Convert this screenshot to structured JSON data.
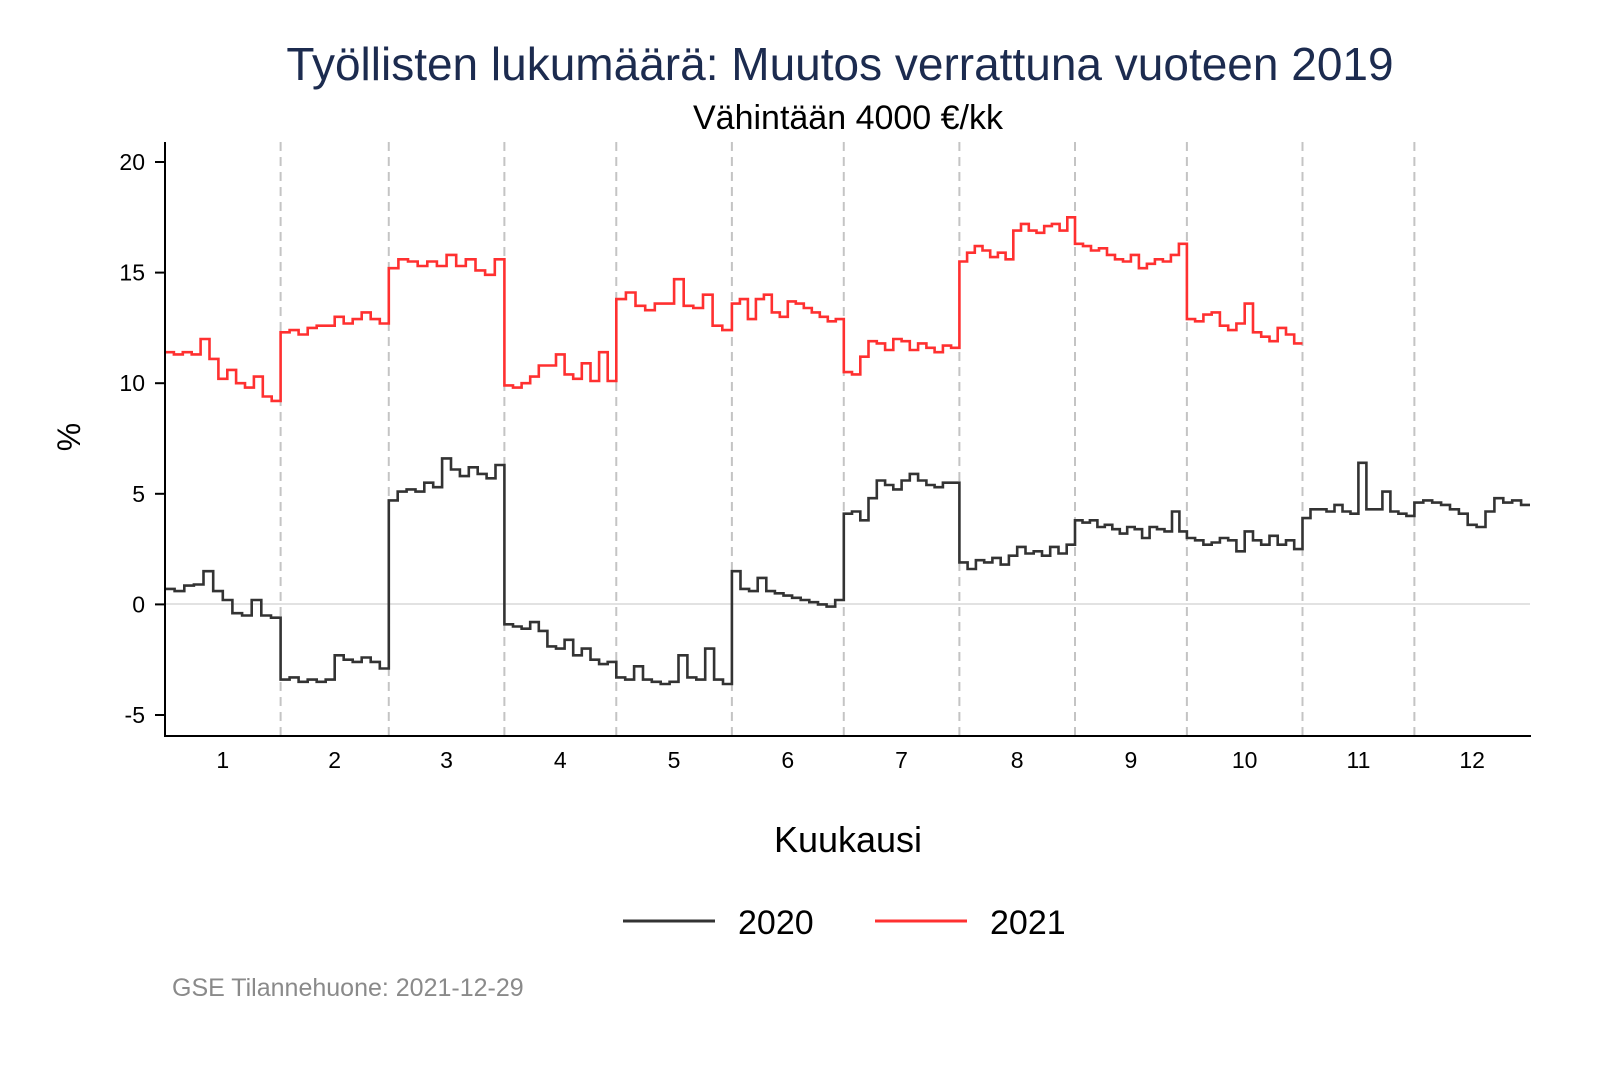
{
  "chart_data": {
    "type": "line",
    "title": "Työllisten lukumäärä: Muutos verrattuna vuoteen 2019",
    "subtitle": "Vähintään 4000 €/kk",
    "xlabel": "Kuukausi",
    "ylabel": "%",
    "ylim": [
      -5,
      20
    ],
    "y_ticks": [
      "-5",
      "0",
      "5",
      "10",
      "15",
      "20"
    ],
    "y_tick_values": [
      -5,
      0,
      5,
      10,
      15,
      20
    ],
    "x_ticks": [
      "1",
      "2",
      "3",
      "4",
      "5",
      "6",
      "7",
      "8",
      "9",
      "10",
      "11",
      "12"
    ],
    "grid": false,
    "reference_line_y": 0,
    "month_separators": true,
    "legend_position": "bottom",
    "note": "GSE Tilannehuone: 2021-12-29",
    "series": [
      {
        "name": "2020",
        "color": "#333333",
        "monthly_values": [
          [
            0.7,
            0.6,
            0.85,
            0.9,
            1.5,
            0.6,
            0.2,
            -0.4,
            -0.5,
            0.2,
            -0.5,
            -0.6
          ],
          [
            -3.4,
            -3.3,
            -3.5,
            -3.4,
            -3.5,
            -3.4,
            -2.3,
            -2.5,
            -2.6,
            -2.4,
            -2.6,
            -2.9
          ],
          [
            4.7,
            5.1,
            5.2,
            5.1,
            5.5,
            5.3,
            6.6,
            6.1,
            5.8,
            6.2,
            5.9,
            5.7,
            6.3
          ],
          [
            -0.9,
            -1.0,
            -1.1,
            -0.8,
            -1.2,
            -1.9,
            -2.0,
            -1.6,
            -2.3,
            -2.0,
            -2.5,
            -2.7,
            -2.6
          ],
          [
            -3.3,
            -3.4,
            -2.8,
            -3.4,
            -3.5,
            -3.6,
            -3.5,
            -2.3,
            -3.3,
            -3.4,
            -2.0,
            -3.4,
            -3.6
          ],
          [
            1.5,
            0.7,
            0.6,
            1.2,
            0.6,
            0.5,
            0.4,
            0.3,
            0.2,
            0.1,
            0.0,
            -0.1,
            0.2
          ],
          [
            4.1,
            4.2,
            3.8,
            4.8,
            5.6,
            5.4,
            5.2,
            5.6,
            5.9,
            5.6,
            5.4,
            5.3,
            5.5,
            5.5
          ],
          [
            1.9,
            1.6,
            2.0,
            1.9,
            2.1,
            1.8,
            2.2,
            2.6,
            2.3,
            2.4,
            2.2,
            2.6,
            2.3,
            2.7
          ],
          [
            3.8,
            3.7,
            3.8,
            3.5,
            3.6,
            3.4,
            3.2,
            3.5,
            3.4,
            3.0,
            3.5,
            3.4,
            3.3,
            4.2,
            3.3
          ],
          [
            3.0,
            2.9,
            2.7,
            2.8,
            3.0,
            2.9,
            2.4,
            3.3,
            2.9,
            2.7,
            3.1,
            2.7,
            2.9,
            2.5
          ],
          [
            3.9,
            4.3,
            4.3,
            4.2,
            4.5,
            4.2,
            4.1,
            6.4,
            4.3,
            4.3,
            5.1,
            4.2,
            4.1,
            4.0
          ],
          [
            4.6,
            4.7,
            4.6,
            4.5,
            4.3,
            4.1,
            3.6,
            3.5,
            4.2,
            4.8,
            4.6,
            4.7,
            4.5
          ]
        ]
      },
      {
        "name": "2021",
        "color": "#ff3030",
        "monthly_values": [
          [
            11.4,
            11.3,
            11.4,
            11.3,
            12.0,
            11.1,
            10.2,
            10.6,
            10.0,
            9.8,
            10.3,
            9.4,
            9.2
          ],
          [
            12.3,
            12.4,
            12.2,
            12.5,
            12.6,
            12.6,
            13.0,
            12.7,
            12.9,
            13.2,
            12.9,
            12.7
          ],
          [
            15.2,
            15.6,
            15.5,
            15.3,
            15.5,
            15.3,
            15.8,
            15.3,
            15.6,
            15.1,
            14.9,
            15.6
          ],
          [
            9.9,
            9.8,
            10.0,
            10.3,
            10.8,
            10.8,
            11.3,
            10.4,
            10.2,
            10.9,
            10.1,
            11.4,
            10.1
          ],
          [
            13.8,
            14.1,
            13.5,
            13.3,
            13.6,
            13.6,
            14.7,
            13.5,
            13.4,
            14.0,
            12.6,
            12.4
          ],
          [
            13.6,
            13.8,
            12.9,
            13.8,
            14.0,
            13.2,
            13.0,
            13.7,
            13.6,
            13.4,
            13.2,
            13.0,
            12.8,
            12.9
          ],
          [
            10.5,
            10.4,
            11.2,
            11.9,
            11.8,
            11.5,
            12.0,
            11.9,
            11.5,
            11.8,
            11.6,
            11.4,
            11.7,
            11.6
          ],
          [
            15.5,
            15.9,
            16.2,
            16.0,
            15.7,
            15.9,
            15.6,
            16.9,
            17.2,
            16.9,
            16.8,
            17.1,
            17.2,
            16.9,
            17.5
          ],
          [
            16.3,
            16.2,
            16.0,
            16.1,
            15.8,
            15.6,
            15.5,
            15.8,
            15.2,
            15.4,
            15.6,
            15.5,
            15.8,
            16.3
          ],
          [
            12.9,
            12.8,
            13.1,
            13.2,
            12.6,
            12.4,
            12.7,
            13.6,
            12.3,
            12.1,
            11.9,
            12.5,
            12.2,
            11.8
          ]
        ]
      }
    ]
  }
}
